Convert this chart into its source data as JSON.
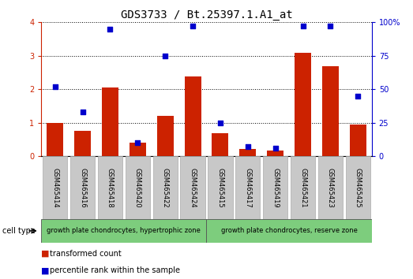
{
  "title": "GDS3733 / Bt.25397.1.A1_at",
  "samples": [
    "GSM465414",
    "GSM465416",
    "GSM465418",
    "GSM465420",
    "GSM465422",
    "GSM465424",
    "GSM465415",
    "GSM465417",
    "GSM465419",
    "GSM465421",
    "GSM465423",
    "GSM465425"
  ],
  "transformed_count": [
    1.0,
    0.75,
    2.05,
    0.4,
    1.2,
    2.38,
    0.68,
    0.22,
    0.18,
    3.1,
    2.68,
    0.95
  ],
  "percentile_rank": [
    52,
    33,
    95,
    10,
    75,
    97,
    25,
    7,
    6,
    97,
    97,
    45
  ],
  "group1_label": "growth plate chondrocytes, hypertrophic zone",
  "group2_label": "growth plate chondrocytes, reserve zone",
  "group1_count": 6,
  "group2_count": 6,
  "ylim_left": [
    0,
    4
  ],
  "ylim_right": [
    0,
    100
  ],
  "yticks_left": [
    0,
    1,
    2,
    3,
    4
  ],
  "yticks_right": [
    0,
    25,
    50,
    75,
    100
  ],
  "bar_color": "#cc2200",
  "dot_color": "#0000cc",
  "grid_color": "#000000",
  "sample_bg": "#c8c8c8",
  "group_bg": "#7dcd7d",
  "cell_type_label": "cell type",
  "legend_bar_label": "transformed count",
  "legend_dot_label": "percentile rank within the sample",
  "title_fontsize": 10,
  "tick_fontsize": 7,
  "label_fontsize": 6,
  "group_fontsize": 6,
  "legend_fontsize": 7
}
